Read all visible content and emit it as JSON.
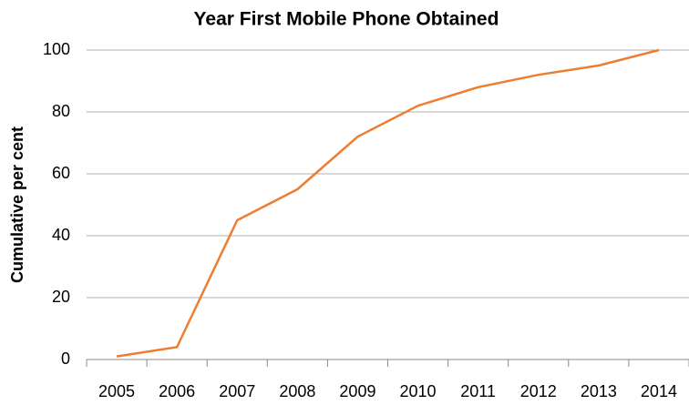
{
  "chart_data": {
    "type": "line",
    "title": "Year First Mobile Phone Obtained",
    "y_label": "Cumulative per cent",
    "categories": [
      "2005",
      "2006",
      "2007",
      "2008",
      "2009",
      "2010",
      "2011",
      "2012",
      "2013",
      "2014"
    ],
    "series": [
      {
        "name": "Cumulative per cent",
        "color": "#ed7d31",
        "values": [
          1,
          4,
          45,
          55,
          72,
          82,
          88,
          92,
          95,
          100
        ]
      }
    ],
    "ylim": [
      0,
      100
    ],
    "yticks": [
      0,
      20,
      40,
      60,
      80,
      100
    ],
    "grid": true
  }
}
